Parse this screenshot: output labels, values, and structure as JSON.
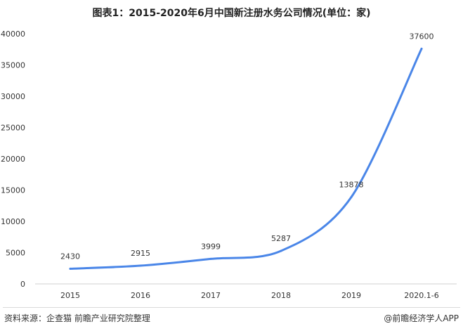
{
  "title": "图表1：2015-2020年6月中国新注册水务公司情况(单位：家)",
  "chart_data": {
    "type": "line",
    "categories": [
      "2015",
      "2016",
      "2017",
      "2018",
      "2019",
      "2020.1-6"
    ],
    "values": [
      2430,
      2915,
      3999,
      5287,
      13878,
      37600
    ],
    "data_labels": [
      "2430",
      "2915",
      "3999",
      "5287",
      "13878",
      "37600"
    ],
    "ylim": [
      0,
      40000
    ],
    "yticks": [
      "0",
      "5000",
      "10000",
      "15000",
      "20000",
      "25000",
      "30000",
      "35000",
      "40000"
    ],
    "grid": false,
    "legend": "none",
    "line_color": "#4a86e8"
  },
  "footer": {
    "source": "资料来源：企查猫 前瞻产业研究院整理",
    "brand": "@前瞻经济学人APP"
  }
}
